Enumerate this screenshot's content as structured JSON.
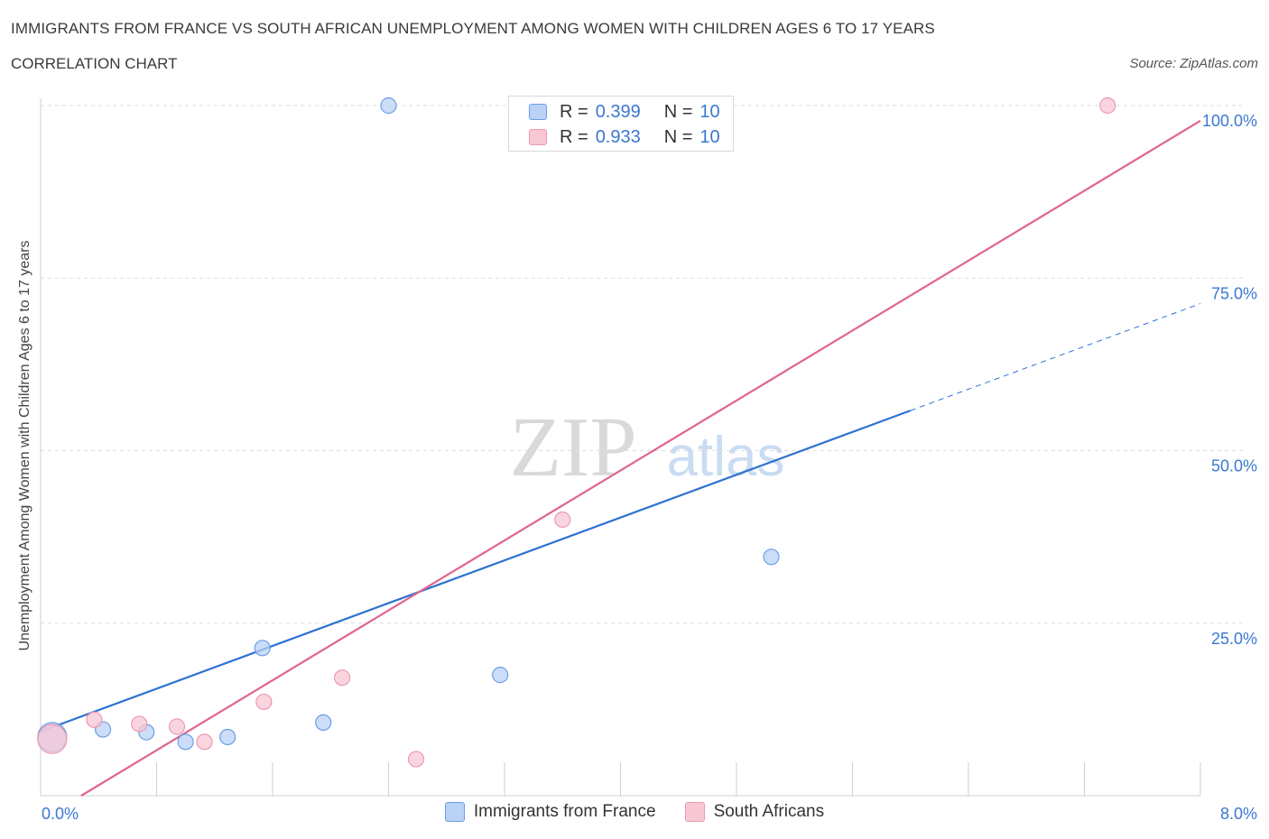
{
  "header": {
    "title": "IMMIGRANTS FROM FRANCE VS SOUTH AFRICAN UNEMPLOYMENT AMONG WOMEN WITH CHILDREN AGES 6 TO 17 YEARS",
    "subtitle": "CORRELATION CHART",
    "source": "Source: ZipAtlas.com"
  },
  "watermark": {
    "zip": "ZIP",
    "atlas": "atlas"
  },
  "legend": {
    "rows": [
      {
        "r_label": "R =",
        "r_value": "0.399",
        "n_label": "N =",
        "n_value": "10"
      },
      {
        "r_label": "R =",
        "r_value": "0.933",
        "n_label": "N =",
        "n_value": "10"
      }
    ]
  },
  "bottom_legend": {
    "series1": "Immigrants from France",
    "series2": "South Africans"
  },
  "chart_data": {
    "type": "scatter",
    "title": "IMMIGRANTS FROM FRANCE VS SOUTH AFRICAN UNEMPLOYMENT AMONG WOMEN WITH CHILDREN AGES 6 TO 17 YEARS",
    "xlabel": "",
    "ylabel": "Unemployment Among Women with Children Ages 6 to 17 years",
    "xlim": [
      0,
      8
    ],
    "ylim": [
      0,
      100
    ],
    "x_tick_labels": [
      "0.0%",
      "8.0%"
    ],
    "y_tick_values": [
      25,
      50,
      75,
      100
    ],
    "y_tick_labels": [
      "25.0%",
      "50.0%",
      "75.0%",
      "100.0%"
    ],
    "grid": true,
    "series": [
      {
        "name": "Immigrants from France",
        "color": "#6b9ee6",
        "fill": "#b9d2f5",
        "line_color": "#2e72d2",
        "R": 0.399,
        "N": 10,
        "points": [
          {
            "x": 0.08,
            "y": 8.5,
            "size": "large"
          },
          {
            "x": 0.43,
            "y": 9.6
          },
          {
            "x": 0.73,
            "y": 9.2
          },
          {
            "x": 1.0,
            "y": 7.8
          },
          {
            "x": 1.29,
            "y": 8.5
          },
          {
            "x": 1.53,
            "y": 21.4
          },
          {
            "x": 1.95,
            "y": 10.6
          },
          {
            "x": 2.4,
            "y": 100.0
          },
          {
            "x": 3.17,
            "y": 17.5
          },
          {
            "x": 5.04,
            "y": 34.6
          }
        ],
        "trend": {
          "x0": 0,
          "y0": 9.3,
          "x1": 8,
          "y1": 71.3,
          "solid_until_x": 6.0
        }
      },
      {
        "name": "South Africans",
        "color": "#ec9ab0",
        "fill": "#f8c7d4",
        "line_color": "#e0668e",
        "R": 0.933,
        "N": 10,
        "points": [
          {
            "x": 0.08,
            "y": 8.2,
            "size": "large"
          },
          {
            "x": 0.37,
            "y": 11.0
          },
          {
            "x": 0.68,
            "y": 10.4
          },
          {
            "x": 0.94,
            "y": 10.0
          },
          {
            "x": 1.13,
            "y": 7.8
          },
          {
            "x": 1.54,
            "y": 13.6
          },
          {
            "x": 2.08,
            "y": 17.1
          },
          {
            "x": 2.59,
            "y": 5.3
          },
          {
            "x": 3.6,
            "y": 40.0
          },
          {
            "x": 7.36,
            "y": 100.0
          }
        ],
        "trend": {
          "x0": 0.28,
          "y0": 0,
          "x1": 8,
          "y1": 97.8
        }
      }
    ]
  }
}
